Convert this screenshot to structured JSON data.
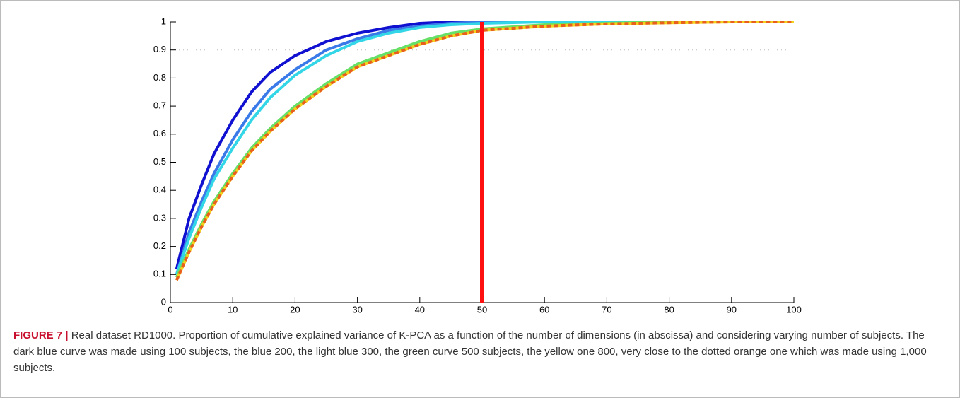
{
  "chart_data": {
    "type": "line",
    "x": [
      1,
      3,
      5,
      7,
      10,
      13,
      16,
      20,
      25,
      30,
      35,
      40,
      45,
      50,
      60,
      70,
      80,
      90,
      100
    ],
    "series": [
      {
        "color": "#1010d0",
        "values": [
          0.12,
          0.3,
          0.42,
          0.53,
          0.65,
          0.75,
          0.82,
          0.88,
          0.93,
          0.96,
          0.98,
          0.995,
          1.0,
          1.0,
          1.0,
          1.0,
          1.0,
          1.0,
          1.0
        ]
      },
      {
        "color": "#3a7ae8",
        "values": [
          0.1,
          0.25,
          0.36,
          0.46,
          0.58,
          0.68,
          0.76,
          0.83,
          0.9,
          0.94,
          0.97,
          0.985,
          0.995,
          1.0,
          1.0,
          1.0,
          1.0,
          1.0,
          1.0
        ]
      },
      {
        "color": "#33d6e6",
        "values": [
          0.1,
          0.23,
          0.34,
          0.44,
          0.55,
          0.65,
          0.73,
          0.81,
          0.88,
          0.93,
          0.96,
          0.98,
          0.99,
          0.995,
          1.0,
          1.0,
          1.0,
          1.0,
          1.0
        ]
      },
      {
        "color": "#66e066",
        "values": [
          0.09,
          0.19,
          0.28,
          0.36,
          0.46,
          0.55,
          0.62,
          0.7,
          0.78,
          0.85,
          0.89,
          0.93,
          0.96,
          0.975,
          0.99,
          0.995,
          1.0,
          1.0,
          1.0
        ]
      },
      {
        "color": "#f2d21c",
        "values": [
          0.08,
          0.18,
          0.27,
          0.35,
          0.45,
          0.54,
          0.61,
          0.69,
          0.77,
          0.84,
          0.88,
          0.92,
          0.95,
          0.97,
          0.985,
          0.993,
          0.997,
          1.0,
          1.0
        ]
      },
      {
        "color": "#e8601c",
        "style": "dotted",
        "values": [
          0.08,
          0.18,
          0.27,
          0.35,
          0.45,
          0.54,
          0.61,
          0.69,
          0.77,
          0.84,
          0.88,
          0.92,
          0.95,
          0.97,
          0.985,
          0.993,
          0.997,
          1.0,
          1.0
        ]
      }
    ],
    "xlim": [
      0,
      100
    ],
    "xticks": [
      0,
      10,
      20,
      30,
      40,
      50,
      60,
      70,
      80,
      90,
      100
    ],
    "ylim": [
      0,
      1
    ],
    "yticks": [
      0,
      0.1,
      0.2,
      0.3,
      0.4,
      0.5,
      0.6,
      0.7,
      0.8,
      0.9,
      1
    ],
    "vline": {
      "value": 50,
      "color": "#ff1010"
    },
    "hline": {
      "value": 0.9,
      "color": "#bbbbbb"
    }
  },
  "caption": {
    "label": "FIGURE 7 |",
    "text": "Real dataset RD1000. Proportion of cumulative explained variance of K-PCA as a function of the number of dimensions (in abscissa) and considering varying number of subjects. The dark blue curve was made using 100 subjects, the blue 200, the light blue 300, the green curve 500 subjects, the yellow one 800, very close to the dotted orange one which was made using 1,000 subjects."
  }
}
